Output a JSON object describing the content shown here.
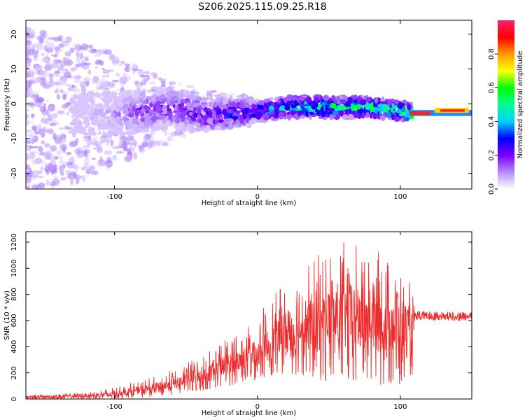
{
  "title": "S206.2025.115.09.25.R18",
  "chart_data": [
    {
      "type": "heatmap",
      "xlabel": "Height of straight line (km)",
      "ylabel": "Frequency (Hz)",
      "xlim": [
        -162,
        150
      ],
      "ylim": [
        -24.5,
        24
      ],
      "xticks": [
        -100,
        0,
        100
      ],
      "yticks": [
        -20,
        -10,
        0,
        10,
        20
      ],
      "colorbar": {
        "label": "Normalized spectral amplitude",
        "range": [
          0,
          1
        ],
        "ticks": [
          "0.0",
          "0.2",
          "0.4",
          "0.6",
          "0.8"
        ],
        "colors": [
          "#ffffff",
          "#b28cff",
          "#7a00ff",
          "#0000ff",
          "#00d0ff",
          "#00ff90",
          "#00ff00",
          "#ffff00",
          "#ff9900",
          "#ff0000",
          "#ff1f70"
        ]
      },
      "ridge": {
        "description_points_x": [
          -120,
          -100,
          -80,
          -60,
          -40,
          -20,
          0,
          20,
          40,
          60,
          80,
          100,
          110,
          130,
          148
        ],
        "frequency": [
          -3,
          -3,
          -2,
          -1,
          -3,
          -3,
          -2,
          -1,
          -1,
          -1,
          -1,
          -2,
          -3,
          -2,
          -2
        ],
        "amplitude": [
          0.05,
          0.1,
          0.18,
          0.2,
          0.25,
          0.3,
          0.35,
          0.45,
          0.5,
          0.55,
          0.6,
          0.6,
          0.9,
          0.9,
          0.9
        ]
      }
    },
    {
      "type": "line",
      "xlabel": "Height of straight line (km)",
      "ylabel": "SNR (10 * v/v)",
      "xlim": [
        -162,
        150
      ],
      "ylim": [
        0,
        1280
      ],
      "xticks": [
        -100,
        0,
        100
      ],
      "yticks": [
        0,
        200,
        400,
        600,
        800,
        1000,
        1200
      ],
      "color": "#ef2b2b",
      "envelope": {
        "x": [
          -162,
          -140,
          -120,
          -100,
          -80,
          -60,
          -40,
          -20,
          0,
          20,
          40,
          60,
          80,
          100,
          108,
          110,
          130,
          150
        ],
        "lower": [
          0,
          0,
          0,
          0,
          10,
          30,
          60,
          100,
          150,
          200,
          150,
          100,
          100,
          100,
          100,
          600,
          600,
          600
        ],
        "upper": [
          30,
          40,
          50,
          90,
          150,
          220,
          330,
          500,
          650,
          900,
          1100,
          1200,
          1180,
          1000,
          880,
          690,
          680,
          670
        ],
        "mean": [
          15,
          20,
          25,
          40,
          70,
          110,
          170,
          260,
          350,
          520,
          600,
          640,
          620,
          560,
          500,
          640,
          635,
          630
        ]
      }
    }
  ]
}
